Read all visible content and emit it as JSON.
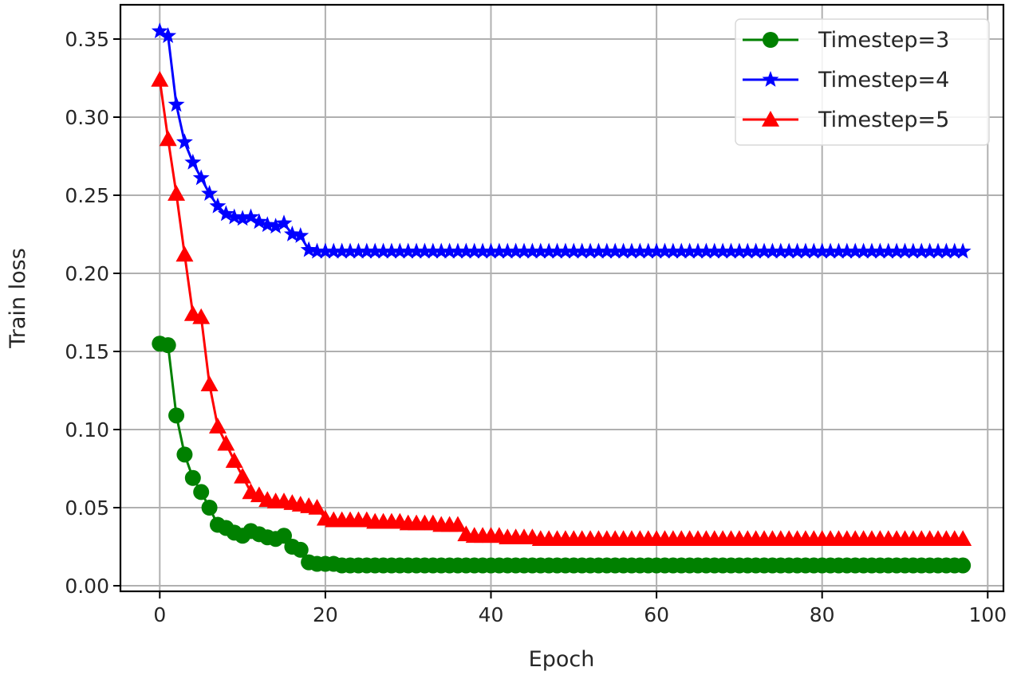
{
  "chart_data": {
    "type": "line",
    "title": "",
    "xlabel": "Epoch",
    "ylabel": "Train loss",
    "xlim": [
      -4.8,
      102.5
    ],
    "ylim": [
      -0.0035,
      0.3715
    ],
    "xticks": [
      0,
      20,
      40,
      60,
      80,
      100
    ],
    "xtick_labels": [
      "0",
      "20",
      "40",
      "60",
      "80",
      "100"
    ],
    "yticks": [
      0.0,
      0.05,
      0.1,
      0.15,
      0.2,
      0.25,
      0.3,
      0.35
    ],
    "ytick_labels": [
      "0.00",
      "0.05",
      "0.10",
      "0.15",
      "0.20",
      "0.25",
      "0.30",
      "0.35"
    ],
    "grid": true,
    "legend_position": "upper right",
    "x_start": 0,
    "num_points": 98,
    "series": [
      {
        "name": "Timestep=3",
        "label": "Timestep=3",
        "color": "#008000",
        "marker": "circle",
        "values": [
          0.155,
          0.154,
          0.109,
          0.084,
          0.069,
          0.06,
          0.05,
          0.039,
          0.037,
          0.034,
          0.032,
          0.035,
          0.033,
          0.031,
          0.03,
          0.032,
          0.025,
          0.023,
          0.015,
          0.014,
          0.014,
          0.014,
          0.013,
          0.013,
          0.013,
          0.013,
          0.013,
          0.013,
          0.013,
          0.013,
          0.013,
          0.013,
          0.013,
          0.013,
          0.013,
          0.013,
          0.013,
          0.013,
          0.013,
          0.013,
          0.013,
          0.013,
          0.013,
          0.013,
          0.013,
          0.013,
          0.013,
          0.013,
          0.013,
          0.013,
          0.013,
          0.013,
          0.013,
          0.013,
          0.013,
          0.013,
          0.013,
          0.013,
          0.013,
          0.013,
          0.013,
          0.013,
          0.013,
          0.013,
          0.013,
          0.013,
          0.013,
          0.013,
          0.013,
          0.013,
          0.013,
          0.013,
          0.013,
          0.013,
          0.013,
          0.013,
          0.013,
          0.013,
          0.013,
          0.013,
          0.013,
          0.013,
          0.013,
          0.013,
          0.013,
          0.013,
          0.013,
          0.013,
          0.013,
          0.013,
          0.013,
          0.013,
          0.013,
          0.013,
          0.013,
          0.013,
          0.013,
          0.013
        ]
      },
      {
        "name": "Timestep=4",
        "label": "Timestep=4",
        "color": "#0000ff",
        "marker": "star",
        "values": [
          0.355,
          0.352,
          0.308,
          0.284,
          0.271,
          0.261,
          0.251,
          0.243,
          0.238,
          0.236,
          0.235,
          0.236,
          0.233,
          0.231,
          0.23,
          0.232,
          0.225,
          0.224,
          0.215,
          0.214,
          0.214,
          0.214,
          0.214,
          0.214,
          0.214,
          0.214,
          0.214,
          0.214,
          0.214,
          0.214,
          0.214,
          0.214,
          0.214,
          0.214,
          0.214,
          0.214,
          0.214,
          0.214,
          0.214,
          0.214,
          0.214,
          0.214,
          0.214,
          0.214,
          0.214,
          0.214,
          0.214,
          0.214,
          0.214,
          0.214,
          0.214,
          0.214,
          0.214,
          0.214,
          0.214,
          0.214,
          0.214,
          0.214,
          0.214,
          0.214,
          0.214,
          0.214,
          0.214,
          0.214,
          0.214,
          0.214,
          0.214,
          0.214,
          0.214,
          0.214,
          0.214,
          0.214,
          0.214,
          0.214,
          0.214,
          0.214,
          0.214,
          0.214,
          0.214,
          0.214,
          0.214,
          0.214,
          0.214,
          0.214,
          0.214,
          0.214,
          0.214,
          0.214,
          0.214,
          0.214,
          0.214,
          0.214,
          0.214,
          0.214,
          0.214,
          0.214,
          0.214,
          0.214
        ]
      },
      {
        "name": "Timestep=5",
        "label": "Timestep=5",
        "color": "#ff0000",
        "marker": "triangle-up",
        "values": [
          0.324,
          0.286,
          0.251,
          0.212,
          0.174,
          0.172,
          0.129,
          0.102,
          0.091,
          0.08,
          0.07,
          0.06,
          0.058,
          0.055,
          0.054,
          0.054,
          0.053,
          0.052,
          0.051,
          0.05,
          0.043,
          0.042,
          0.042,
          0.042,
          0.042,
          0.042,
          0.041,
          0.041,
          0.041,
          0.041,
          0.04,
          0.04,
          0.04,
          0.04,
          0.039,
          0.039,
          0.039,
          0.033,
          0.032,
          0.032,
          0.032,
          0.032,
          0.031,
          0.031,
          0.031,
          0.031,
          0.03,
          0.03,
          0.03,
          0.03,
          0.03,
          0.03,
          0.03,
          0.03,
          0.03,
          0.03,
          0.03,
          0.03,
          0.03,
          0.03,
          0.03,
          0.03,
          0.03,
          0.03,
          0.03,
          0.03,
          0.03,
          0.03,
          0.03,
          0.03,
          0.03,
          0.03,
          0.03,
          0.03,
          0.03,
          0.03,
          0.03,
          0.03,
          0.03,
          0.03,
          0.03,
          0.03,
          0.03,
          0.03,
          0.03,
          0.03,
          0.03,
          0.03,
          0.03,
          0.03,
          0.03,
          0.03,
          0.03,
          0.03,
          0.03,
          0.03,
          0.03,
          0.03
        ]
      }
    ]
  },
  "legend": {
    "items": [
      {
        "label": "Timestep=3",
        "color": "#008000",
        "marker": "circle"
      },
      {
        "label": "Timestep=4",
        "color": "#0000ff",
        "marker": "star"
      },
      {
        "label": "Timestep=5",
        "color": "#ff0000",
        "marker": "triangle-up"
      }
    ]
  },
  "axes": {
    "xlabel": "Epoch",
    "ylabel": "Train loss"
  },
  "style": {
    "grid_color": "#b0b0b0",
    "axis_color": "#000000",
    "text_color": "#262626",
    "background": "#ffffff"
  }
}
